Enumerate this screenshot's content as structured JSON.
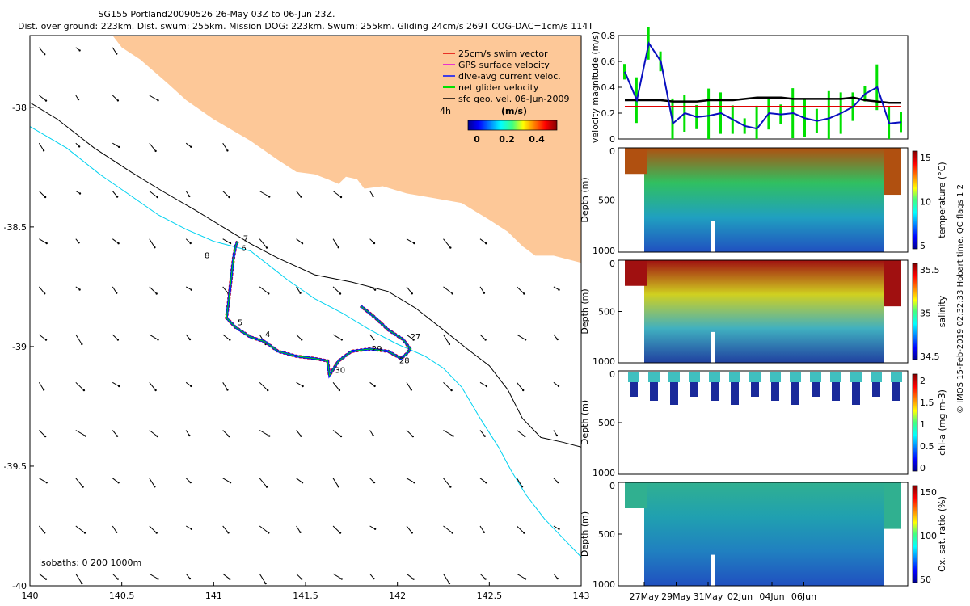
{
  "header": {
    "title": "SG155 Portland20090526 26-May 03Z to 06-Jun 23Z.",
    "subtitle": "Dist. over ground: 223km. Dist. swum: 255km. Mission DOG: 223km. Swum: 255km. Gliding 24cm/s 269T COG-DAC=1cm/s 114T"
  },
  "colors": {
    "land": "#fdc898",
    "isobath_200": "#000000",
    "isobath_1000": "#00d2f0",
    "track_red": "#e00000",
    "track_blue": "#0010ff",
    "track_green": "#00e000",
    "mag_line": "#0a10c0",
    "geo_line": "#000000",
    "glide_line": "#e00000"
  },
  "chart_data": [
    {
      "type": "map",
      "x_ticks": [
        "140",
        "140.5",
        "141",
        "141.5",
        "142",
        "142.5",
        "143"
      ],
      "y_ticks": [
        "-38",
        "-38.5",
        "-39",
        "-39.5",
        "-40"
      ],
      "xlim": [
        140,
        143
      ],
      "ylim": [
        -40,
        -37.7
      ],
      "legend": [
        {
          "label": "25cm/s swim vector",
          "color": "#e00000"
        },
        {
          "label": "GPS surface velocity",
          "color": "#e000e0"
        },
        {
          "label": "dive-avg current veloc.",
          "color": "#0010ff"
        },
        {
          "label": "net glider velocity",
          "color": "#00e000"
        },
        {
          "label": "sfc geo. vel. 06-Jun-2009",
          "color": "#000000"
        }
      ],
      "colorbar": {
        "prefix": "4h",
        "unit": "(m/s)",
        "ticks": [
          "0",
          "0.2",
          "0.4"
        ]
      },
      "isobath_note": "isobaths: 0   200   1000m",
      "coast": [
        [
          140.45,
          -37.7
        ],
        [
          140.5,
          -37.75
        ],
        [
          140.6,
          -37.8
        ],
        [
          140.75,
          -37.9
        ],
        [
          140.85,
          -37.97
        ],
        [
          141.0,
          -38.05
        ],
        [
          141.2,
          -38.14
        ],
        [
          141.35,
          -38.22
        ],
        [
          141.45,
          -38.27
        ],
        [
          141.55,
          -38.28
        ],
        [
          141.62,
          -38.3
        ],
        [
          141.68,
          -38.32
        ],
        [
          141.72,
          -38.29
        ],
        [
          141.78,
          -38.3
        ],
        [
          141.82,
          -38.34
        ],
        [
          141.92,
          -38.33
        ],
        [
          142.05,
          -38.36
        ],
        [
          142.2,
          -38.38
        ],
        [
          142.35,
          -38.4
        ],
        [
          142.5,
          -38.47
        ],
        [
          142.6,
          -38.52
        ],
        [
          142.68,
          -38.58
        ],
        [
          142.75,
          -38.62
        ],
        [
          142.85,
          -38.62
        ],
        [
          142.95,
          -38.64
        ],
        [
          143.0,
          -38.65
        ]
      ],
      "isobath_200": [
        [
          140.0,
          -37.98
        ],
        [
          140.15,
          -38.05
        ],
        [
          140.35,
          -38.17
        ],
        [
          140.55,
          -38.27
        ],
        [
          140.72,
          -38.35
        ],
        [
          140.9,
          -38.43
        ],
        [
          141.05,
          -38.5
        ],
        [
          141.2,
          -38.57
        ],
        [
          141.35,
          -38.63
        ],
        [
          141.55,
          -38.7
        ],
        [
          141.75,
          -38.73
        ],
        [
          141.95,
          -38.77
        ],
        [
          142.1,
          -38.84
        ],
        [
          142.25,
          -38.93
        ],
        [
          142.38,
          -39.01
        ],
        [
          142.5,
          -39.08
        ],
        [
          142.6,
          -39.18
        ],
        [
          142.68,
          -39.3
        ],
        [
          142.78,
          -39.38
        ],
        [
          142.9,
          -39.4
        ],
        [
          143.0,
          -39.42
        ]
      ],
      "isobath_1000": [
        [
          140.0,
          -38.08
        ],
        [
          140.2,
          -38.17
        ],
        [
          140.38,
          -38.28
        ],
        [
          140.55,
          -38.37
        ],
        [
          140.7,
          -38.45
        ],
        [
          140.85,
          -38.51
        ],
        [
          141.0,
          -38.56
        ],
        [
          141.2,
          -38.6
        ],
        [
          141.3,
          -38.66
        ],
        [
          141.4,
          -38.72
        ],
        [
          141.55,
          -38.8
        ],
        [
          141.7,
          -38.86
        ],
        [
          141.85,
          -38.93
        ],
        [
          142.0,
          -38.99
        ],
        [
          142.15,
          -39.04
        ],
        [
          142.25,
          -39.09
        ],
        [
          142.35,
          -39.17
        ],
        [
          142.45,
          -39.3
        ],
        [
          142.55,
          -39.42
        ],
        [
          142.62,
          -39.52
        ],
        [
          142.7,
          -39.62
        ],
        [
          142.8,
          -39.72
        ],
        [
          142.9,
          -39.8
        ],
        [
          143.0,
          -39.88
        ]
      ],
      "track": [
        [
          141.13,
          -38.56
        ],
        [
          141.12,
          -38.58
        ],
        [
          141.11,
          -38.62
        ],
        [
          141.1,
          -38.68
        ],
        [
          141.09,
          -38.75
        ],
        [
          141.08,
          -38.82
        ],
        [
          141.07,
          -38.88
        ],
        [
          141.12,
          -38.92
        ],
        [
          141.2,
          -38.96
        ],
        [
          141.28,
          -38.98
        ],
        [
          141.35,
          -39.02
        ],
        [
          141.45,
          -39.04
        ],
        [
          141.55,
          -39.05
        ],
        [
          141.62,
          -39.06
        ],
        [
          141.63,
          -39.12
        ],
        [
          141.68,
          -39.06
        ],
        [
          141.75,
          -39.02
        ],
        [
          141.85,
          -39.01
        ],
        [
          141.95,
          -39.02
        ],
        [
          142.02,
          -39.05
        ],
        [
          142.05,
          -39.03
        ],
        [
          142.07,
          -39.01
        ],
        [
          142.03,
          -38.97
        ],
        [
          141.95,
          -38.93
        ],
        [
          141.88,
          -38.88
        ],
        [
          141.8,
          -38.83
        ]
      ],
      "track_labels": [
        {
          "text": "7",
          "lon": 141.16,
          "lat": -38.56
        },
        {
          "text": "6",
          "lon": 141.15,
          "lat": -38.6
        },
        {
          "text": "8",
          "lon": 140.95,
          "lat": -38.63
        },
        {
          "text": "5",
          "lon": 141.13,
          "lat": -38.91
        },
        {
          "text": "4",
          "lon": 141.28,
          "lat": -38.96
        },
        {
          "text": "27",
          "lon": 142.07,
          "lat": -38.97
        },
        {
          "text": "29",
          "lon": 141.86,
          "lat": -39.02
        },
        {
          "text": "28",
          "lon": 142.01,
          "lat": -39.07
        },
        {
          "text": "30",
          "lon": 141.66,
          "lat": -39.11
        }
      ]
    },
    {
      "type": "line",
      "ylabel": "velocity magnitude (m/s)",
      "ylim": [
        0,
        0.8
      ],
      "y_ticks": [
        "0",
        "0.2",
        "0.4",
        "0.6",
        "0.8"
      ],
      "x": [
        0,
        0.5,
        1,
        1.5,
        2,
        2.5,
        3,
        3.5,
        4,
        4.5,
        5,
        5.5,
        6,
        6.5,
        7,
        7.5,
        8,
        8.5,
        9,
        9.5,
        10,
        10.5,
        11,
        11.5
      ],
      "series": [
        {
          "values": [
            0.52,
            0.3,
            0.74,
            0.6,
            0.12,
            0.2,
            0.17,
            0.18,
            0.2,
            0.15,
            0.1,
            0.08,
            0.2,
            0.19,
            0.2,
            0.16,
            0.14,
            0.16,
            0.2,
            0.25,
            0.35,
            0.4,
            0.12,
            0.13
          ],
          "color": "#0a10c0"
        },
        {
          "values": [
            0.3,
            0.3,
            0.3,
            0.3,
            0.29,
            0.29,
            0.29,
            0.3,
            0.3,
            0.3,
            0.31,
            0.32,
            0.32,
            0.32,
            0.31,
            0.31,
            0.31,
            0.31,
            0.31,
            0.32,
            0.3,
            0.29,
            0.28,
            0.28
          ],
          "color": "#000000"
        },
        {
          "values": [
            0.25,
            0.25,
            0.25,
            0.25,
            0.25,
            0.25,
            0.25,
            0.25,
            0.25,
            0.25,
            0.25,
            0.25,
            0.25,
            0.25,
            0.25,
            0.25,
            0.25,
            0.25,
            0.25,
            0.25,
            0.25,
            0.25,
            0.25,
            0.25
          ],
          "color": "#e00000"
        }
      ]
    },
    {
      "type": "heatmap",
      "ylabel": "Depth (m)",
      "y_ticks": [
        "0",
        "500",
        "1000"
      ],
      "colorbar_label": "temperature (°C)",
      "colorbar_ticks": [
        "5",
        "10",
        "15"
      ]
    },
    {
      "type": "heatmap",
      "ylabel": "Depth (m)",
      "y_ticks": [
        "0",
        "500",
        "1000"
      ],
      "colorbar_label": "salinity",
      "colorbar_ticks": [
        "34.5",
        "35",
        "35.5"
      ]
    },
    {
      "type": "heatmap",
      "ylabel": "Depth (m)",
      "y_ticks": [
        "0",
        "500",
        "1000"
      ],
      "colorbar_label": "chl-a (mg m-3)",
      "colorbar_ticks": [
        "0",
        "0.5",
        "1",
        "1.5",
        "2"
      ]
    },
    {
      "type": "heatmap",
      "ylabel": "Depth (m)",
      "y_ticks": [
        "0",
        "500",
        "1000"
      ],
      "colorbar_label": "Ox. sat. ratio (%)",
      "colorbar_ticks": [
        "50",
        "100",
        "150"
      ],
      "x_ticks": [
        "27May",
        "29May",
        "31May",
        "02Jun",
        "04Jun",
        "06Jun"
      ]
    }
  ],
  "sidebar": {
    "vertical_note": "© IMOS 15-Feb-2019 02:32:33 Hobart time. QC flags 1  2"
  }
}
